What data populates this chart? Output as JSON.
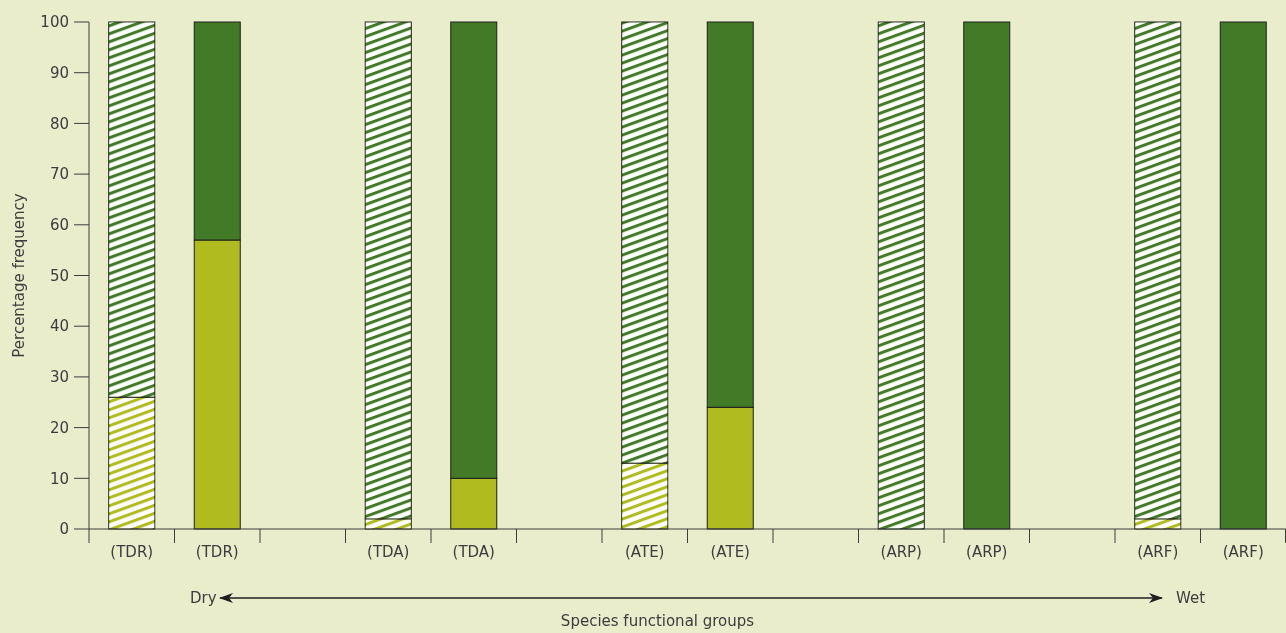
{
  "chart_data": {
    "type": "bar",
    "stacked": true,
    "xlabel": "Species functional groups",
    "ylabel": "Percentage frequency",
    "categories": [
      "(TDR)",
      "(TDR)",
      null,
      "(TDA)",
      "(TDA)",
      null,
      "(ATE)",
      "(ATE)",
      null,
      "(ARP)",
      "(ARP)",
      null,
      "(ARF)",
      "(ARF)"
    ],
    "series": [
      {
        "color": "#afbb1e",
        "values": [
          26,
          null,
          null,
          2,
          null,
          null,
          13,
          null,
          null,
          0,
          null,
          null,
          2,
          null
        ]
      },
      {
        "color": "#437a28",
        "values": [
          74,
          null,
          null,
          98,
          null,
          null,
          87,
          null,
          null,
          100,
          null,
          null,
          98,
          null
        ]
      },
      {
        "color": "#afbb1e",
        "values": [
          null,
          57,
          null,
          null,
          10,
          null,
          null,
          24,
          null,
          null,
          0,
          null,
          null,
          0
        ]
      },
      {
        "color": "#437a28",
        "values": [
          null,
          43,
          null,
          null,
          90,
          null,
          null,
          76,
          null,
          null,
          100,
          null,
          null,
          100
        ]
      }
    ],
    "ylim": [
      0,
      100
    ],
    "yticks": [
      0,
      10,
      20,
      30,
      40,
      50,
      60,
      70,
      80,
      90,
      100
    ],
    "grid": false,
    "annotations": [
      "Dry",
      "Wet"
    ]
  }
}
